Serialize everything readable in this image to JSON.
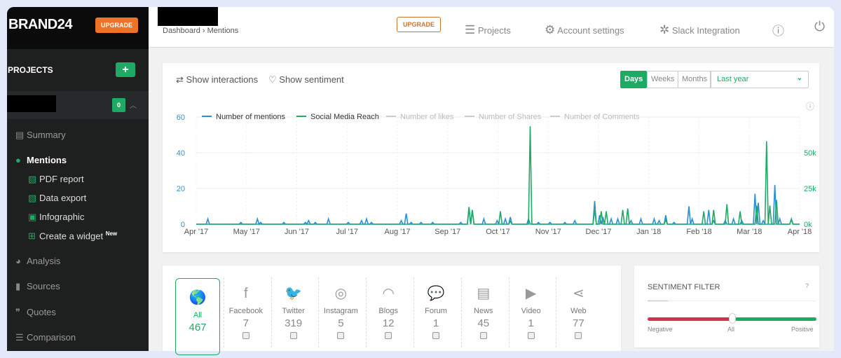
{
  "sidebar": {
    "brand": "BRAND24",
    "upgrade": "UPGRADE",
    "projects_label": "PROJECTS",
    "project_count": "0",
    "items": [
      {
        "label": "Summary",
        "icon": "file-icon"
      },
      {
        "label": "Mentions",
        "icon": "comments-icon",
        "active": true
      },
      {
        "label": "PDF report",
        "icon": "pdf-icon"
      },
      {
        "label": "Data export",
        "icon": "excel-icon"
      },
      {
        "label": "Infographic",
        "icon": "image-icon"
      },
      {
        "label": "Create a widget",
        "icon": "plus-square-icon",
        "badge": "New"
      },
      {
        "label": "Analysis",
        "icon": "pie-chart-icon"
      },
      {
        "label": "Sources",
        "icon": "briefcase-icon"
      },
      {
        "label": "Quotes",
        "icon": "quote-icon"
      },
      {
        "label": "Comparison",
        "icon": "list-icon"
      }
    ]
  },
  "header": {
    "breadcrumb": [
      "Dashboard",
      "Mentions"
    ],
    "upgrade": "UPGRADE",
    "projects": "Projects",
    "account": "Account settings",
    "slack": "Slack Integration"
  },
  "toolbar": {
    "interactions": "Show interactions",
    "sentiment": "Show sentiment",
    "days": "Days",
    "weeks": "Weeks",
    "months": "Months",
    "range": "Last year",
    "active": "Days"
  },
  "colors": {
    "mentions": "#2a8fd6",
    "reach": "#1eaa65",
    "accent": "#1eaa65",
    "negative": "#d8304f",
    "upgrade": "#ee7326"
  },
  "chart_data": {
    "type": "line",
    "x_range": [
      "2017-04-01",
      "2018-04-01"
    ],
    "x_ticks": [
      "Apr '17",
      "May '17",
      "Jun '17",
      "Jul '17",
      "Aug '17",
      "Sep '17",
      "Oct '17",
      "Nov '17",
      "Dec '17",
      "Jan '18",
      "Feb '18",
      "Mar '18",
      "Apr '18"
    ],
    "y_left": {
      "ticks": [
        "0",
        "20",
        "40",
        "60"
      ],
      "range": [
        0,
        60
      ]
    },
    "y_right": {
      "ticks": [
        "0k",
        "25k",
        "50k"
      ],
      "range": [
        0,
        75000
      ]
    },
    "grid": true,
    "legend_placement": "top-left",
    "legend": [
      "Number of mentions",
      "Social Media Reach",
      "Number of likes",
      "Number of Shares",
      "Number of Comments"
    ],
    "series": [
      {
        "name": "Number of mentions",
        "axis": "left",
        "points": [
          [
            "2017-04-08",
            3
          ],
          [
            "2017-04-28",
            1
          ],
          [
            "2017-05-08",
            3
          ],
          [
            "2017-05-10",
            1
          ],
          [
            "2017-05-24",
            1
          ],
          [
            "2017-06-06",
            1
          ],
          [
            "2017-06-08",
            2
          ],
          [
            "2017-06-12",
            1
          ],
          [
            "2017-06-20",
            3
          ],
          [
            "2017-07-02",
            1
          ],
          [
            "2017-07-10",
            2
          ],
          [
            "2017-07-13",
            3
          ],
          [
            "2017-07-16",
            1
          ],
          [
            "2017-08-03",
            2
          ],
          [
            "2017-08-06",
            6
          ],
          [
            "2017-08-09",
            1
          ],
          [
            "2017-08-15",
            1
          ],
          [
            "2017-08-22",
            1
          ],
          [
            "2017-09-08",
            1
          ],
          [
            "2017-09-13",
            9
          ],
          [
            "2017-09-15",
            8
          ],
          [
            "2017-09-22",
            3
          ],
          [
            "2017-09-30",
            2
          ],
          [
            "2017-10-05",
            3
          ],
          [
            "2017-10-08",
            4
          ],
          [
            "2017-10-19",
            3
          ],
          [
            "2017-10-25",
            1
          ],
          [
            "2017-11-01",
            1
          ],
          [
            "2017-11-10",
            1
          ],
          [
            "2017-11-16",
            2
          ],
          [
            "2017-11-28",
            13
          ],
          [
            "2017-12-01",
            5
          ],
          [
            "2017-12-03",
            4
          ],
          [
            "2017-12-08",
            3
          ],
          [
            "2017-12-12",
            3
          ],
          [
            "2017-12-20",
            2
          ],
          [
            "2017-12-26",
            3
          ],
          [
            "2018-01-03",
            3
          ],
          [
            "2018-01-06",
            2
          ],
          [
            "2018-01-10",
            5
          ],
          [
            "2018-01-15",
            1
          ],
          [
            "2018-01-24",
            10
          ],
          [
            "2018-01-26",
            3
          ],
          [
            "2018-02-05",
            8
          ],
          [
            "2018-02-08",
            2
          ],
          [
            "2018-02-15",
            2
          ],
          [
            "2018-02-20",
            3
          ],
          [
            "2018-02-25",
            2
          ],
          [
            "2018-03-05",
            17
          ],
          [
            "2018-03-07",
            12
          ],
          [
            "2018-03-10",
            2
          ],
          [
            "2018-03-17",
            22
          ],
          [
            "2018-03-20",
            3
          ],
          [
            "2018-03-27",
            3
          ]
        ]
      },
      {
        "name": "Social Media Reach",
        "axis": "right",
        "points": [
          [
            "2017-09-13",
            12000
          ],
          [
            "2017-09-15",
            10000
          ],
          [
            "2017-10-02",
            9000
          ],
          [
            "2017-10-08",
            2000
          ],
          [
            "2017-10-20",
            68500
          ],
          [
            "2017-11-28",
            10000
          ],
          [
            "2017-12-02",
            9000
          ],
          [
            "2017-12-05",
            9000
          ],
          [
            "2017-12-15",
            10000
          ],
          [
            "2017-12-18",
            11000
          ],
          [
            "2018-01-10",
            3000
          ],
          [
            "2018-02-02",
            9000
          ],
          [
            "2018-02-08",
            10000
          ],
          [
            "2018-02-16",
            14000
          ],
          [
            "2018-02-24",
            9000
          ],
          [
            "2018-03-06",
            13000
          ],
          [
            "2018-03-12",
            58000
          ],
          [
            "2018-03-14",
            13000
          ],
          [
            "2018-03-18",
            17000
          ],
          [
            "2018-03-27",
            3000
          ]
        ]
      }
    ]
  },
  "sources": [
    {
      "label": "All",
      "count": "467",
      "icon": "globe-icon"
    },
    {
      "label": "Facebook",
      "count": "7",
      "icon": "facebook-icon"
    },
    {
      "label": "Twitter",
      "count": "319",
      "icon": "twitter-icon"
    },
    {
      "label": "Instagram",
      "count": "5",
      "icon": "instagram-icon"
    },
    {
      "label": "Blogs",
      "count": "12",
      "icon": "rss-icon"
    },
    {
      "label": "Forum",
      "count": "1",
      "icon": "forum-icon"
    },
    {
      "label": "News",
      "count": "45",
      "icon": "newspaper-icon"
    },
    {
      "label": "Video",
      "count": "1",
      "icon": "youtube-icon"
    },
    {
      "label": "Web",
      "count": "77",
      "icon": "share-icon"
    }
  ],
  "sentiment": {
    "title": "SENTIMENT FILTER",
    "help": "?",
    "negative": "Negative",
    "all": "All",
    "positive": "Positive",
    "value": 0.5
  }
}
